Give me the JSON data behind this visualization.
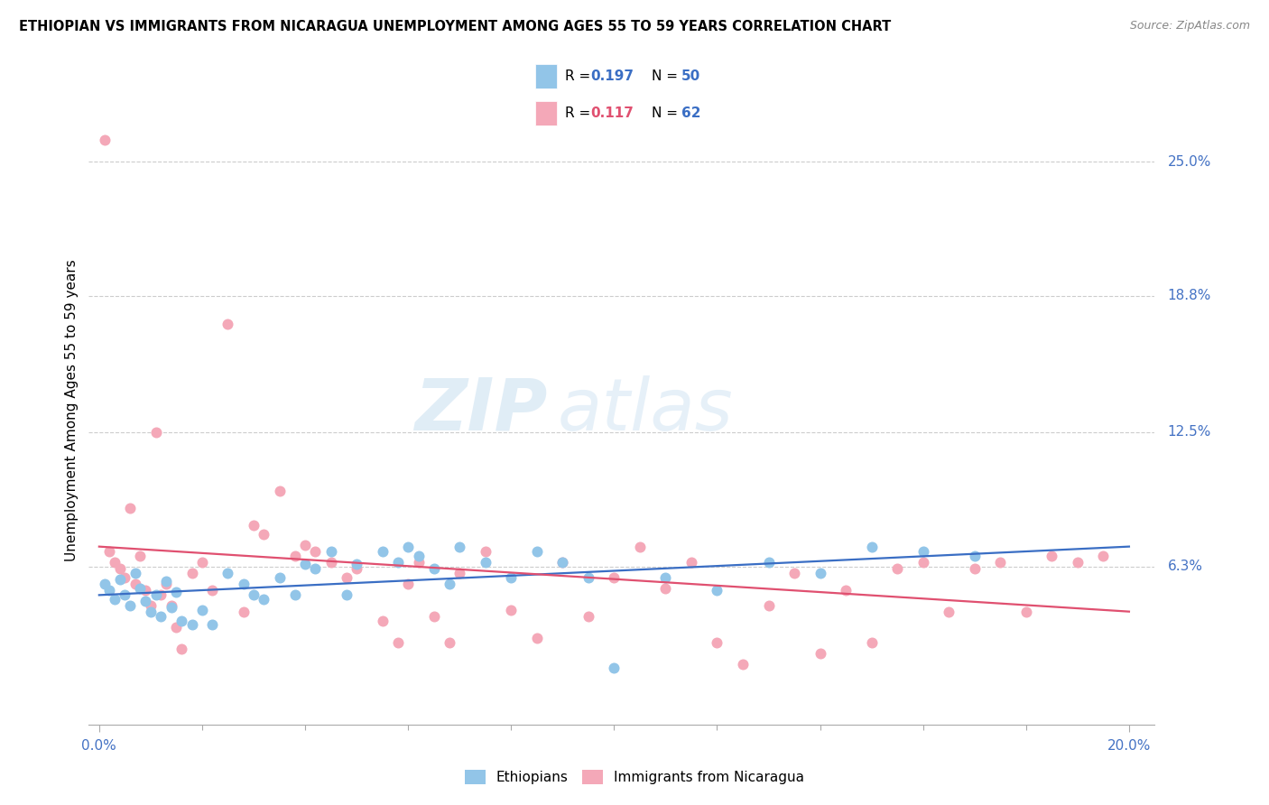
{
  "title": "ETHIOPIAN VS IMMIGRANTS FROM NICARAGUA UNEMPLOYMENT AMONG AGES 55 TO 59 YEARS CORRELATION CHART",
  "source": "Source: ZipAtlas.com",
  "ylabel": "Unemployment Among Ages 55 to 59 years",
  "xlim": [
    -0.002,
    0.205
  ],
  "ylim": [
    -0.01,
    0.28
  ],
  "ytick_vals": [
    0.063,
    0.125,
    0.188,
    0.25
  ],
  "ytick_labels": [
    "6.3%",
    "12.5%",
    "18.8%",
    "25.0%"
  ],
  "watermark_zip": "ZIP",
  "watermark_atlas": "atlas",
  "ethiopians_color": "#92C5E8",
  "nicaragua_color": "#F4A8B8",
  "trendline_eth_color": "#3A6EC4",
  "trendline_nic_color": "#E05070",
  "eth_R": "0.197",
  "eth_N": "50",
  "nic_R": "0.117",
  "nic_N": "62",
  "eth_x": [
    0.001,
    0.002,
    0.003,
    0.004,
    0.005,
    0.006,
    0.007,
    0.008,
    0.009,
    0.01,
    0.011,
    0.012,
    0.013,
    0.014,
    0.015,
    0.016,
    0.018,
    0.02,
    0.022,
    0.025,
    0.028,
    0.03,
    0.032,
    0.035,
    0.038,
    0.04,
    0.042,
    0.045,
    0.048,
    0.05,
    0.055,
    0.058,
    0.06,
    0.062,
    0.065,
    0.068,
    0.07,
    0.075,
    0.08,
    0.085,
    0.09,
    0.095,
    0.1,
    0.11,
    0.12,
    0.13,
    0.14,
    0.15,
    0.16,
    0.17
  ],
  "eth_y": [
    0.055,
    0.052,
    0.048,
    0.057,
    0.05,
    0.045,
    0.06,
    0.053,
    0.047,
    0.042,
    0.05,
    0.04,
    0.056,
    0.044,
    0.051,
    0.038,
    0.036,
    0.043,
    0.036,
    0.06,
    0.055,
    0.05,
    0.048,
    0.058,
    0.05,
    0.064,
    0.062,
    0.07,
    0.05,
    0.064,
    0.07,
    0.065,
    0.072,
    0.068,
    0.062,
    0.055,
    0.072,
    0.065,
    0.058,
    0.07,
    0.065,
    0.058,
    0.016,
    0.058,
    0.052,
    0.065,
    0.06,
    0.072,
    0.07,
    0.068
  ],
  "nic_x": [
    0.001,
    0.002,
    0.003,
    0.004,
    0.005,
    0.006,
    0.007,
    0.008,
    0.009,
    0.01,
    0.011,
    0.012,
    0.013,
    0.014,
    0.015,
    0.016,
    0.018,
    0.02,
    0.022,
    0.025,
    0.028,
    0.03,
    0.032,
    0.035,
    0.038,
    0.04,
    0.042,
    0.045,
    0.048,
    0.05,
    0.055,
    0.058,
    0.06,
    0.062,
    0.065,
    0.068,
    0.07,
    0.075,
    0.08,
    0.085,
    0.09,
    0.095,
    0.1,
    0.105,
    0.11,
    0.115,
    0.12,
    0.125,
    0.13,
    0.135,
    0.14,
    0.145,
    0.15,
    0.155,
    0.16,
    0.165,
    0.17,
    0.175,
    0.18,
    0.185,
    0.19,
    0.195
  ],
  "nic_y": [
    0.26,
    0.07,
    0.065,
    0.062,
    0.058,
    0.09,
    0.055,
    0.068,
    0.052,
    0.045,
    0.125,
    0.05,
    0.055,
    0.045,
    0.035,
    0.025,
    0.06,
    0.065,
    0.052,
    0.175,
    0.042,
    0.082,
    0.078,
    0.098,
    0.068,
    0.073,
    0.07,
    0.065,
    0.058,
    0.062,
    0.038,
    0.028,
    0.055,
    0.065,
    0.04,
    0.028,
    0.06,
    0.07,
    0.043,
    0.03,
    0.065,
    0.04,
    0.058,
    0.072,
    0.053,
    0.065,
    0.028,
    0.018,
    0.045,
    0.06,
    0.023,
    0.052,
    0.028,
    0.062,
    0.065,
    0.042,
    0.062,
    0.065,
    0.042,
    0.068,
    0.065,
    0.068
  ]
}
